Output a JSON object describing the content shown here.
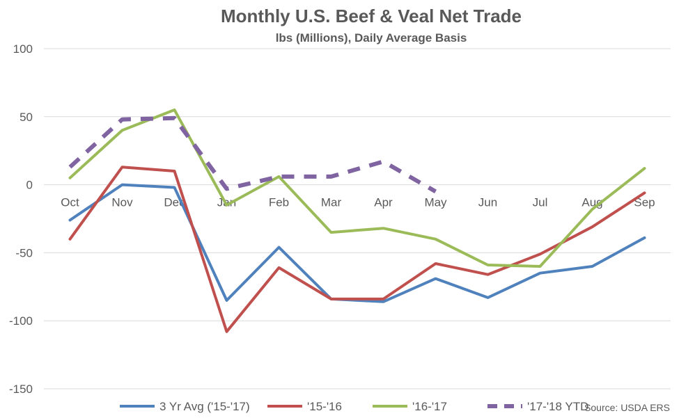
{
  "chart_data": {
    "type": "line",
    "title": "Monthly U.S. Beef & Veal Net Trade",
    "subtitle": "lbs (Millions), Daily Average Basis",
    "xlabel": "",
    "ylabel": "",
    "ylim": [
      -150,
      100
    ],
    "yticks": [
      100,
      50,
      0,
      -50,
      -100,
      -150
    ],
    "grid": true,
    "legend_position": "bottom",
    "categories": [
      "Oct",
      "Nov",
      "Dec",
      "Jan",
      "Feb",
      "Mar",
      "Apr",
      "May",
      "Jun",
      "Jul",
      "Aug",
      "Sep"
    ],
    "series": [
      {
        "name": "3 Yr Avg ('15-'17)",
        "color": "#4F81BD",
        "dashed": false,
        "values": [
          -26,
          0,
          -2,
          -85,
          -46,
          -84,
          -86,
          -69,
          -83,
          -65,
          -60,
          -39
        ]
      },
      {
        "name": "'15-'16",
        "color": "#C0504D",
        "dashed": false,
        "values": [
          -40,
          13,
          10,
          -108,
          -61,
          -84,
          -84,
          -58,
          -66,
          -51,
          -31,
          -6
        ]
      },
      {
        "name": "'16-'17",
        "color": "#9BBB59",
        "dashed": false,
        "values": [
          5,
          40,
          55,
          -15,
          6,
          -35,
          -32,
          -40,
          -59,
          -60,
          -18,
          12
        ]
      },
      {
        "name": "'17-'18 YTD",
        "color": "#8064A2",
        "dashed": true,
        "values": [
          13,
          48,
          49,
          -3,
          6,
          6,
          17,
          -5,
          null,
          null,
          null,
          null
        ]
      }
    ],
    "source": "Source: USDA ERS"
  }
}
